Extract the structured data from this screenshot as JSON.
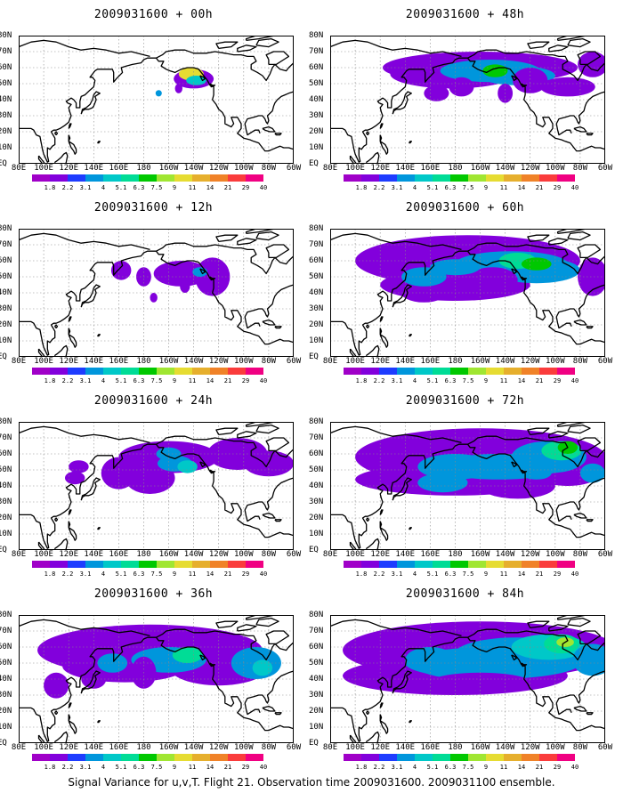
{
  "panels": [
    {
      "title": "2009031600 + 00h"
    },
    {
      "title": "2009031600 + 48h"
    },
    {
      "title": "2009031600 + 12h"
    },
    {
      "title": "2009031600 + 60h"
    },
    {
      "title": "2009031600 + 24h"
    },
    {
      "title": "2009031600 + 72h"
    },
    {
      "title": "2009031600 + 36h"
    },
    {
      "title": "2009031600 + 84h"
    }
  ],
  "lat_labels": [
    "80N",
    "70N",
    "60N",
    "50N",
    "40N",
    "30N",
    "20N",
    "10N",
    "EQ"
  ],
  "lon_labels": [
    "80E",
    "100E",
    "120E",
    "140E",
    "160E",
    "180",
    "160W",
    "140W",
    "120W",
    "100W",
    "80W",
    "60W"
  ],
  "colorbar": {
    "labels": [
      "1.8",
      "2.2",
      "3.1",
      "4",
      "5.1",
      "6.3",
      "7.5",
      "9",
      "11",
      "14",
      "21",
      "29",
      "40"
    ],
    "colors": [
      "#a000c8",
      "#8200dc",
      "#1e3cff",
      "#0096dc",
      "#00c8c8",
      "#00dc96",
      "#00c800",
      "#a0e632",
      "#e6dc32",
      "#e6af2d",
      "#f08228",
      "#fa3c3c",
      "#f00082"
    ]
  },
  "footer": "Signal Variance for u,v,T. Flight 21. Observation time 2009031600. 2009031100 ensemble."
}
